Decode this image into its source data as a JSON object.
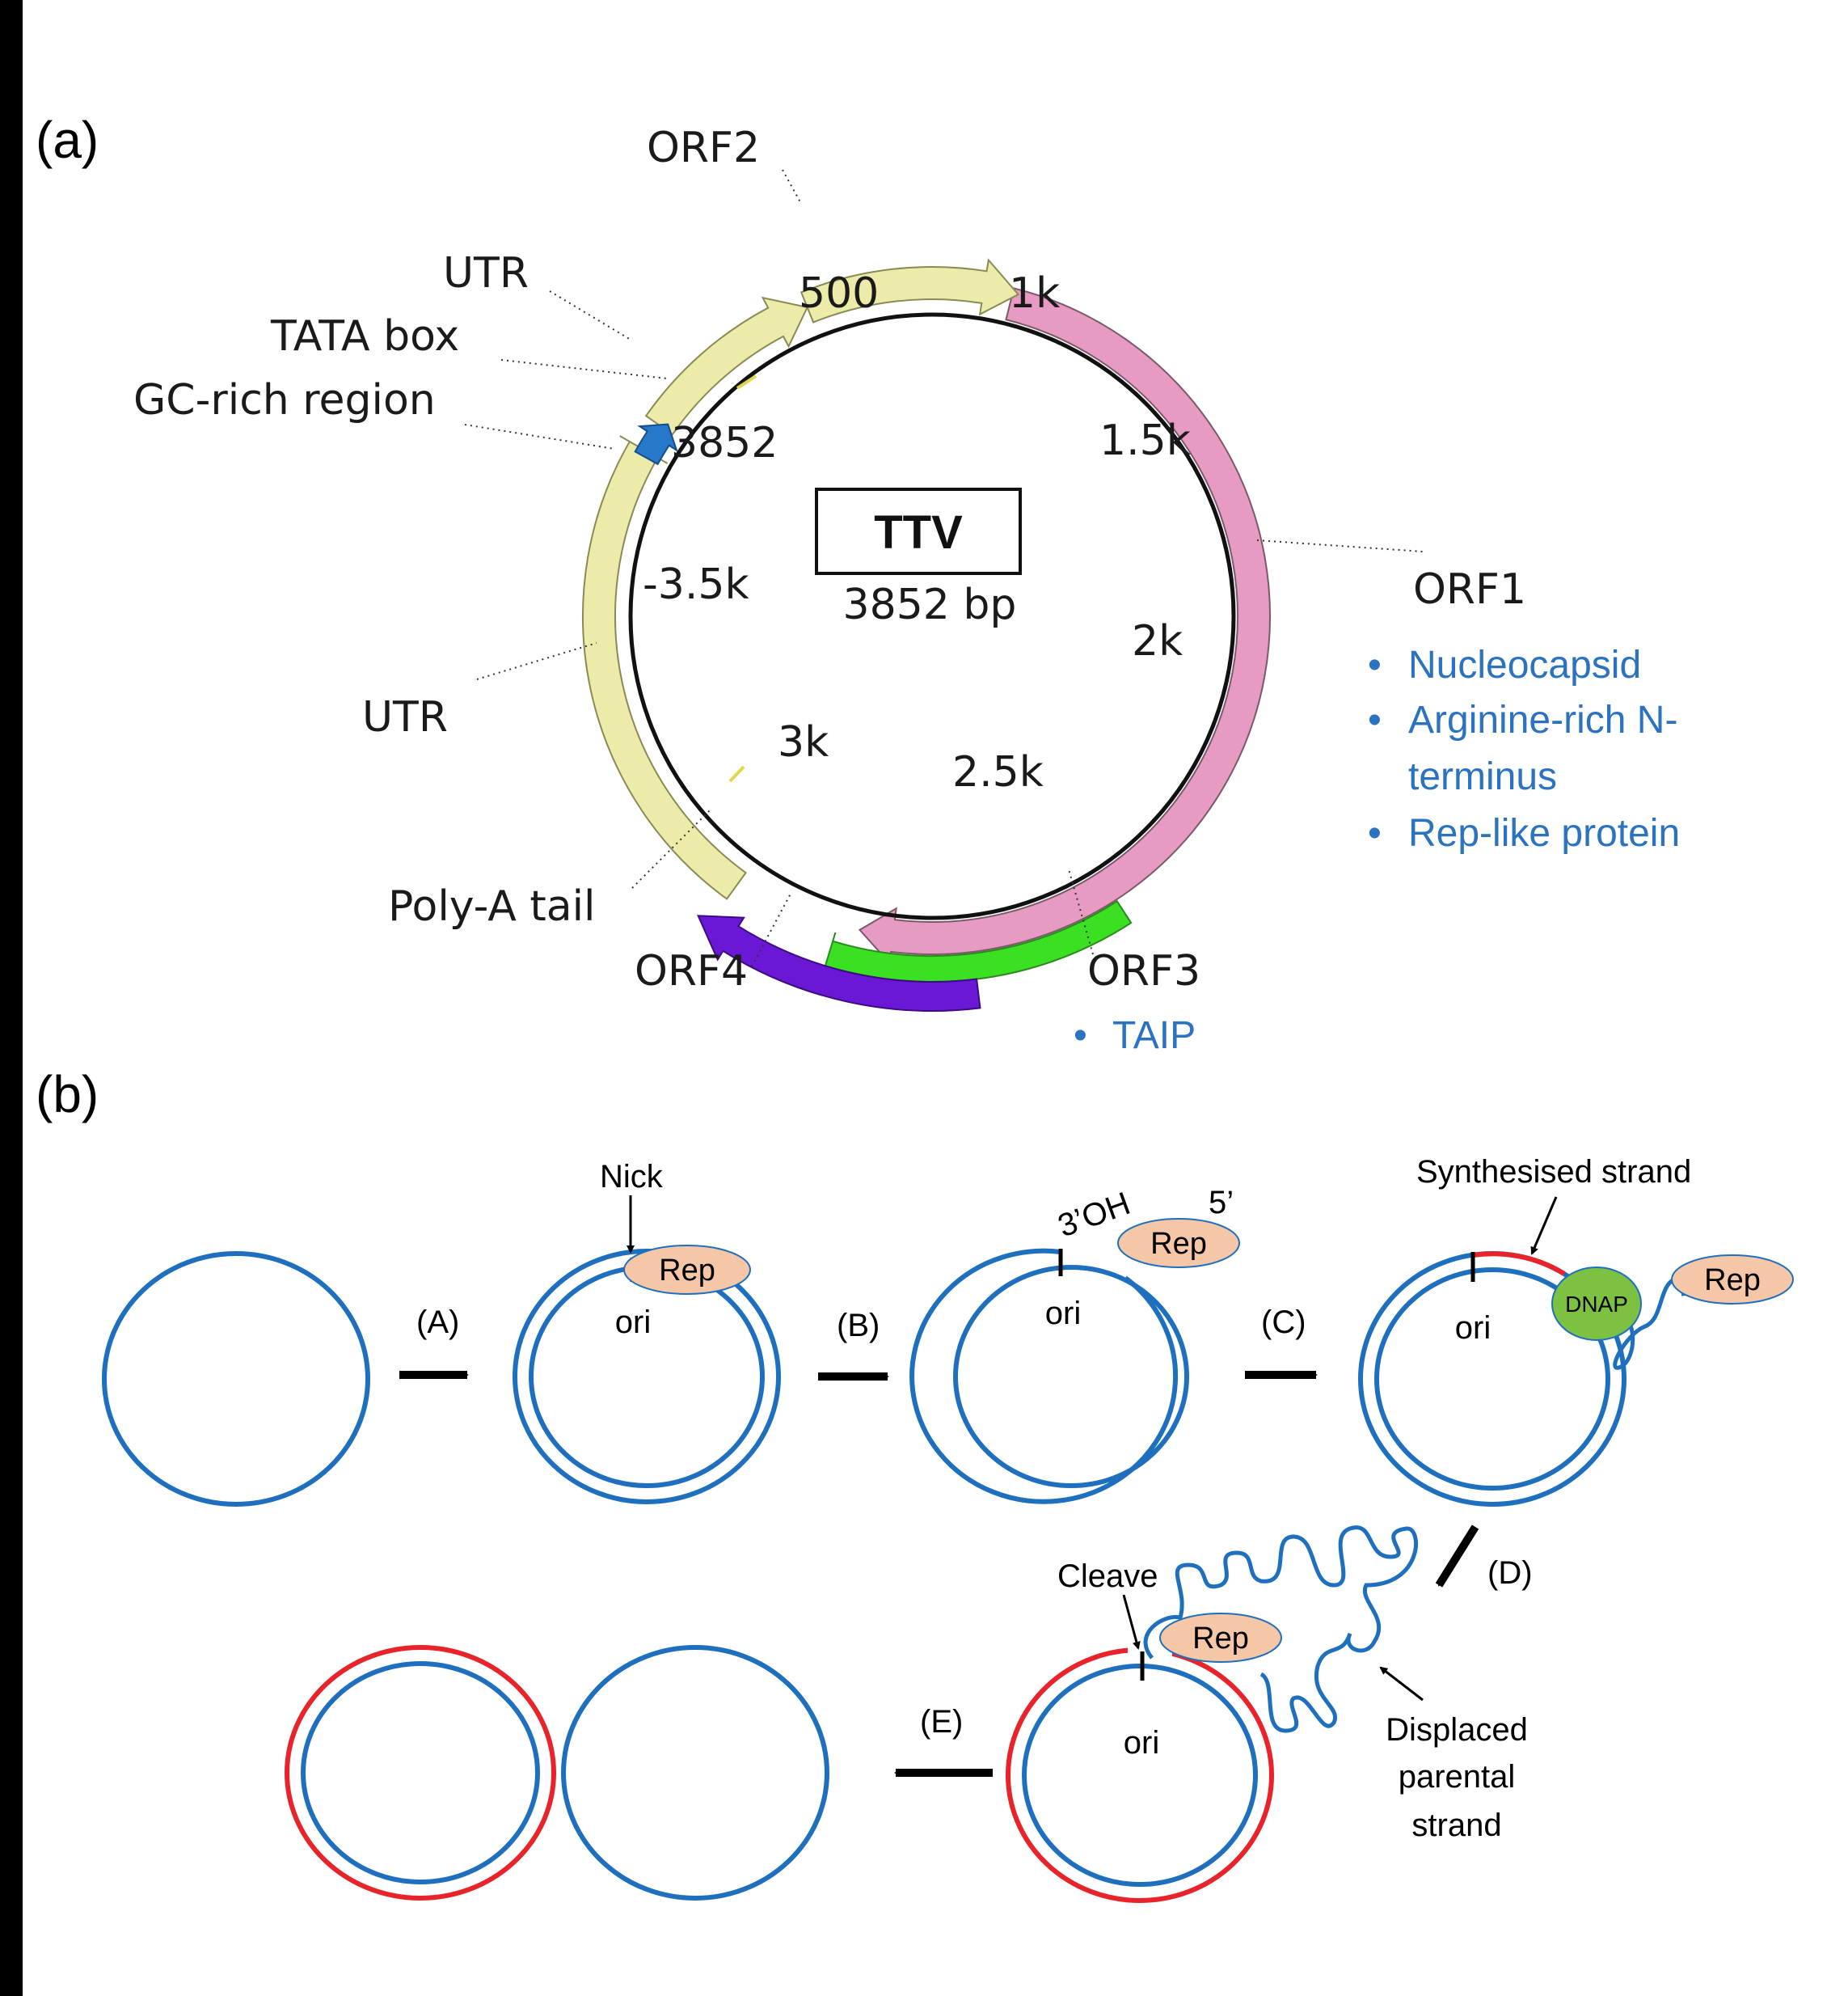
{
  "panels": {
    "a": "(a)",
    "b": "(b)"
  },
  "genome": {
    "name": "TTV",
    "length_label": "3852 bp",
    "length_bp": 3852,
    "ticks": [
      "500",
      "1k",
      "1.5k",
      "2k",
      "2.5k",
      "3k",
      "-3.5k",
      "3852"
    ]
  },
  "features": {
    "orf1": "ORF1",
    "orf2": "ORF2",
    "orf3": "ORF3",
    "orf4": "ORF4",
    "utr_top": "UTR",
    "utr_bottom": "UTR",
    "tata": "TATA box",
    "gc": "GC-rich region",
    "polya": "Poly-A tail"
  },
  "orf1_notes": [
    "Nucleocapsid",
    "Arginine-rich N-",
    "terminus",
    "Rep-like protein"
  ],
  "orf3_notes": [
    "TAIP"
  ],
  "bullet": "•",
  "replication": {
    "steps": [
      "(A)",
      "(B)",
      "(C)",
      "(D)",
      "(E)"
    ],
    "nick": "Nick",
    "ori": "ori",
    "rep": "Rep",
    "dnap": "DNAP",
    "three_oh": "3’OH",
    "five_prime": "5’",
    "synth": "Synthesised strand",
    "cleave": "Cleave",
    "displaced": [
      "Displaced",
      "parental",
      "strand"
    ]
  },
  "colors": {
    "orf1": "#e79ac2",
    "orf2_utr": "#ecebaa",
    "orf3": "#3ae021",
    "orf4": "#6a17d6",
    "gc": "#2678c9",
    "dna_blue": "#1f6fbf",
    "new_strand_red": "#e8232a",
    "rep_fill": "#f6c7a6",
    "dnap_fill": "#7dc142",
    "note_blue": "#2b72c0"
  }
}
